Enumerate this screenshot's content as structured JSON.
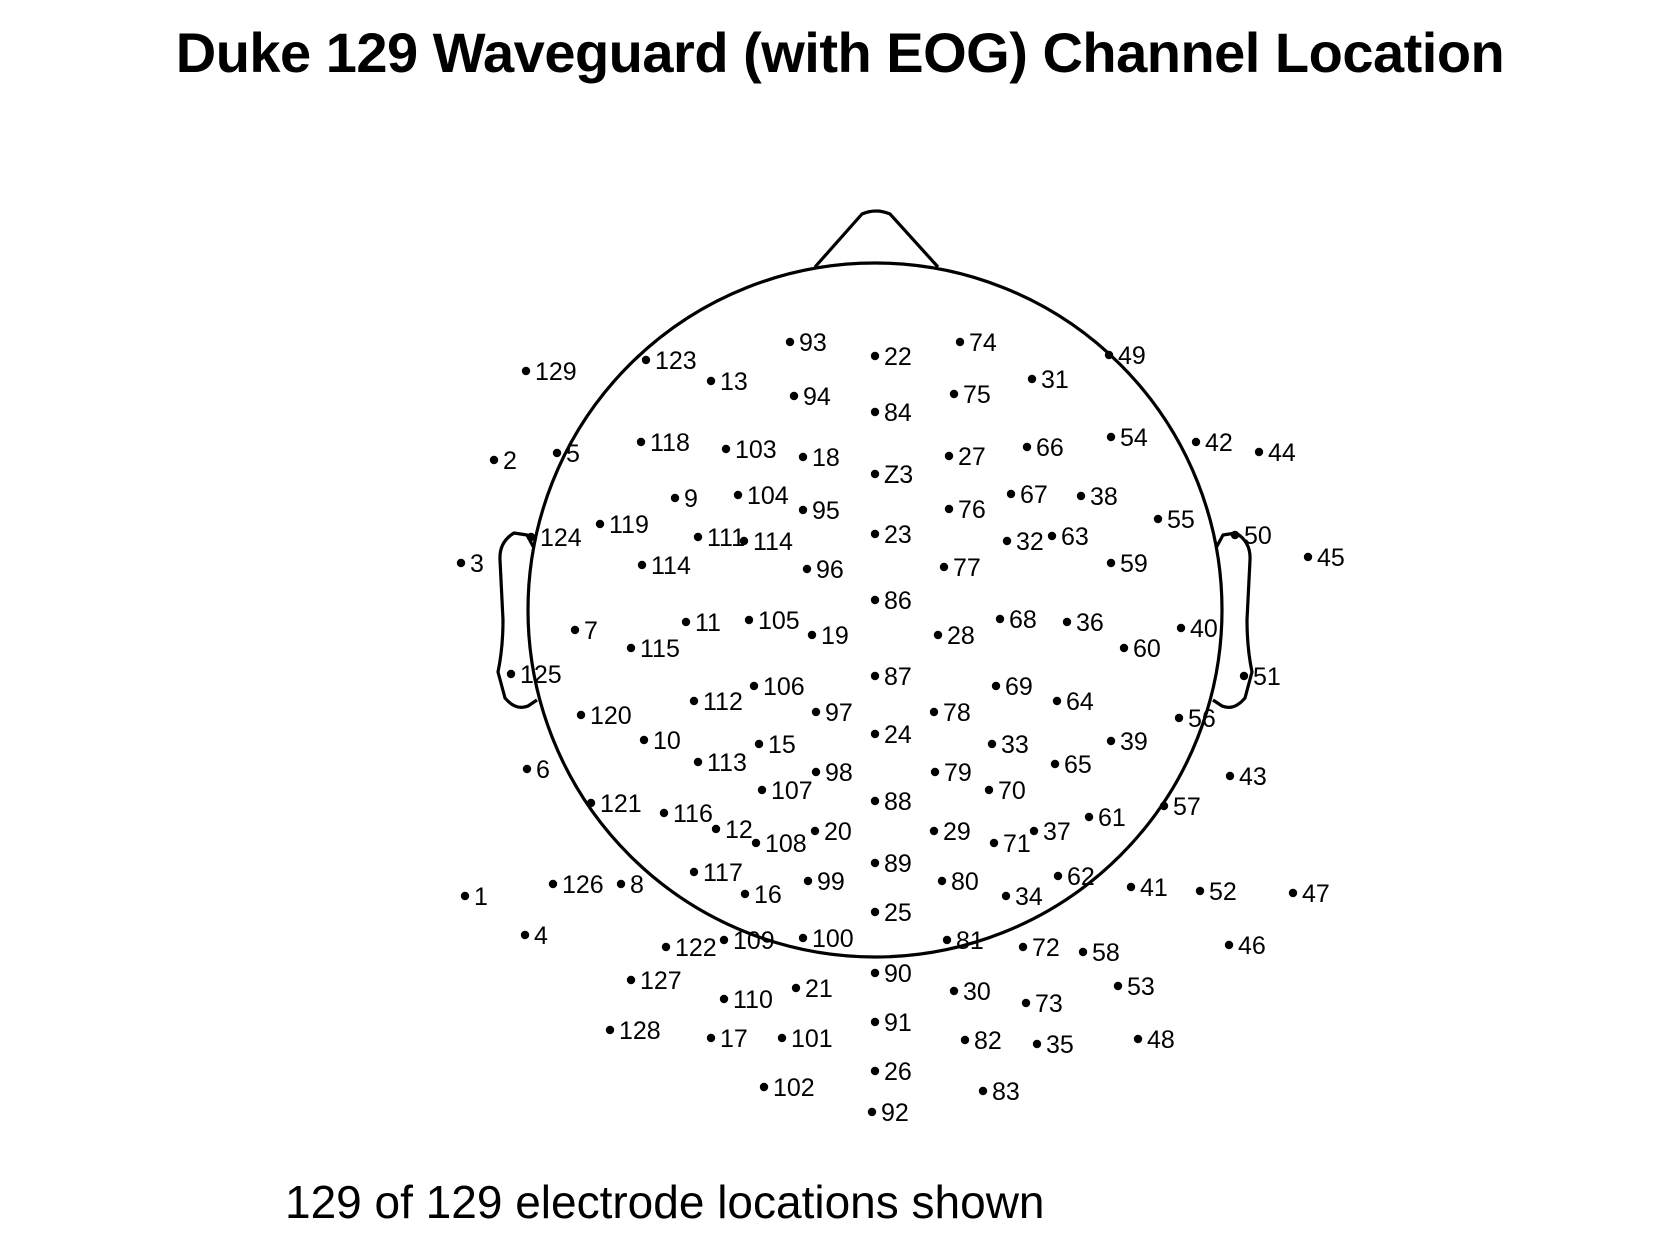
{
  "title": "Duke 129 Waveguard (with EOG) Channel Location",
  "caption": "129 of 129 electrode locations shown",
  "colors": {
    "ink": "#000000",
    "background": "#ffffff"
  },
  "electrodes": [
    {
      "label": "93",
      "x": -85,
      "y": 268
    },
    {
      "label": "22",
      "x": 0,
      "y": 254
    },
    {
      "label": "74",
      "x": 85,
      "y": 268
    },
    {
      "label": "123",
      "x": -229,
      "y": 250
    },
    {
      "label": "13",
      "x": -164,
      "y": 229
    },
    {
      "label": "94",
      "x": -81,
      "y": 214
    },
    {
      "label": "84",
      "x": 0,
      "y": 198
    },
    {
      "label": "75",
      "x": 79,
      "y": 216
    },
    {
      "label": "31",
      "x": 157,
      "y": 231
    },
    {
      "label": "49",
      "x": 234,
      "y": 255
    },
    {
      "label": "129",
      "x": -349,
      "y": 239
    },
    {
      "label": "2",
      "x": -381,
      "y": 150
    },
    {
      "label": "5",
      "x": -318,
      "y": 157
    },
    {
      "label": "118",
      "x": -234,
      "y": 168
    },
    {
      "label": "103",
      "x": -149,
      "y": 161
    },
    {
      "label": "18",
      "x": -72,
      "y": 153
    },
    {
      "label": "Z3",
      "x": 0,
      "y": 136
    },
    {
      "label": "27",
      "x": 74,
      "y": 154
    },
    {
      "label": "66",
      "x": 152,
      "y": 163
    },
    {
      "label": "54",
      "x": 236,
      "y": 173
    },
    {
      "label": "42",
      "x": 321,
      "y": 168
    },
    {
      "label": "44",
      "x": 384,
      "y": 158
    },
    {
      "label": "9",
      "x": -200,
      "y": 112
    },
    {
      "label": "104",
      "x": -137,
      "y": 115
    },
    {
      "label": "95",
      "x": -72,
      "y": 100
    },
    {
      "label": "23",
      "x": 0,
      "y": 76
    },
    {
      "label": "76",
      "x": 74,
      "y": 101
    },
    {
      "label": "67",
      "x": 136,
      "y": 116
    },
    {
      "label": "38",
      "x": 206,
      "y": 114
    },
    {
      "label": "55",
      "x": 283,
      "y": 91
    },
    {
      "label": "119",
      "x": -275,
      "y": 86
    },
    {
      "label": "124",
      "x": -344,
      "y": 73
    },
    {
      "label": "111",
      "x": -177,
      "y": 73
    },
    {
      "label": "114",
      "x": -131,
      "y": 69
    },
    {
      "label": "114",
      "x": -233,
      "y": 45
    },
    {
      "label": "96",
      "x": -68,
      "y": 41
    },
    {
      "label": "77",
      "x": 69,
      "y": 43
    },
    {
      "label": "32",
      "x": 132,
      "y": 69
    },
    {
      "label": "63",
      "x": 177,
      "y": 74
    },
    {
      "label": "59",
      "x": 236,
      "y": 47
    },
    {
      "label": "50",
      "x": 360,
      "y": 75
    },
    {
      "label": "3",
      "x": -414,
      "y": 47
    },
    {
      "label": "45",
      "x": 433,
      "y": 53
    },
    {
      "label": "86",
      "x": 0,
      "y": 10
    },
    {
      "label": "7",
      "x": -300,
      "y": -20
    },
    {
      "label": "11",
      "x": -189,
      "y": -12
    },
    {
      "label": "105",
      "x": -126,
      "y": -10
    },
    {
      "label": "19",
      "x": -63,
      "y": -25
    },
    {
      "label": "28",
      "x": 63,
      "y": -25
    },
    {
      "label": "68",
      "x": 125,
      "y": -9
    },
    {
      "label": "36",
      "x": 192,
      "y": -12
    },
    {
      "label": "60",
      "x": 249,
      "y": -38
    },
    {
      "label": "40",
      "x": 306,
      "y": -18
    },
    {
      "label": "115",
      "x": -244,
      "y": -38
    },
    {
      "label": "125",
      "x": -364,
      "y": -64
    },
    {
      "label": "106",
      "x": -121,
      "y": -76
    },
    {
      "label": "87",
      "x": 0,
      "y": -66
    },
    {
      "label": "69",
      "x": 121,
      "y": -76
    },
    {
      "label": "51",
      "x": 369,
      "y": -66
    },
    {
      "label": "112",
      "x": -181,
      "y": -91
    },
    {
      "label": "97",
      "x": -59,
      "y": -102
    },
    {
      "label": "78",
      "x": 59,
      "y": -102
    },
    {
      "label": "64",
      "x": 182,
      "y": -91
    },
    {
      "label": "120",
      "x": -294,
      "y": -105
    },
    {
      "label": "56",
      "x": 304,
      "y": -108
    },
    {
      "label": "10",
      "x": -231,
      "y": -130
    },
    {
      "label": "15",
      "x": -116,
      "y": -134
    },
    {
      "label": "24",
      "x": 0,
      "y": -124
    },
    {
      "label": "33",
      "x": 117,
      "y": -134
    },
    {
      "label": "39",
      "x": 236,
      "y": -131
    },
    {
      "label": "113",
      "x": -177,
      "y": -152
    },
    {
      "label": "98",
      "x": -59,
      "y": -162
    },
    {
      "label": "79",
      "x": 60,
      "y": -162
    },
    {
      "label": "65",
      "x": 180,
      "y": -154
    },
    {
      "label": "6",
      "x": -348,
      "y": -159
    },
    {
      "label": "43",
      "x": 355,
      "y": -166
    },
    {
      "label": "107",
      "x": -113,
      "y": -180
    },
    {
      "label": "70",
      "x": 114,
      "y": -180
    },
    {
      "label": "121",
      "x": -284,
      "y": -193
    },
    {
      "label": "116",
      "x": -211,
      "y": -203
    },
    {
      "label": "88",
      "x": 0,
      "y": -191
    },
    {
      "label": "57",
      "x": 289,
      "y": -196
    },
    {
      "label": "12",
      "x": -159,
      "y": -219
    },
    {
      "label": "108",
      "x": -119,
      "y": -233
    },
    {
      "label": "20",
      "x": -60,
      "y": -221
    },
    {
      "label": "29",
      "x": 59,
      "y": -221
    },
    {
      "label": "71",
      "x": 119,
      "y": -233
    },
    {
      "label": "37",
      "x": 159,
      "y": -221
    },
    {
      "label": "61",
      "x": 214,
      "y": -207
    },
    {
      "label": "117",
      "x": -181,
      "y": -262
    },
    {
      "label": "99",
      "x": -67,
      "y": -271
    },
    {
      "label": "89",
      "x": 0,
      "y": -253
    },
    {
      "label": "80",
      "x": 67,
      "y": -271
    },
    {
      "label": "62",
      "x": 183,
      "y": -266
    },
    {
      "label": "126",
      "x": -322,
      "y": -274
    },
    {
      "label": "8",
      "x": -254,
      "y": -274
    },
    {
      "label": "16",
      "x": -130,
      "y": -284
    },
    {
      "label": "34",
      "x": 131,
      "y": -286
    },
    {
      "label": "41",
      "x": 256,
      "y": -277
    },
    {
      "label": "52",
      "x": 325,
      "y": -281
    },
    {
      "label": "47",
      "x": 418,
      "y": -283
    },
    {
      "label": "1",
      "x": -410,
      "y": -286
    },
    {
      "label": "25",
      "x": 0,
      "y": -302
    },
    {
      "label": "4",
      "x": -350,
      "y": -325
    },
    {
      "label": "109",
      "x": -151,
      "y": -330
    },
    {
      "label": "100",
      "x": -72,
      "y": -328
    },
    {
      "label": "81",
      "x": 72,
      "y": -330
    },
    {
      "label": "72",
      "x": 148,
      "y": -337
    },
    {
      "label": "58",
      "x": 208,
      "y": -342
    },
    {
      "label": "46",
      "x": 354,
      "y": -335
    },
    {
      "label": "122",
      "x": -209,
      "y": -337
    },
    {
      "label": "127",
      "x": -244,
      "y": -370
    },
    {
      "label": "90",
      "x": 0,
      "y": -363
    },
    {
      "label": "21",
      "x": -79,
      "y": -378
    },
    {
      "label": "30",
      "x": 79,
      "y": -381
    },
    {
      "label": "53",
      "x": 243,
      "y": -376
    },
    {
      "label": "110",
      "x": -151,
      "y": -389
    },
    {
      "label": "73",
      "x": 151,
      "y": -393
    },
    {
      "label": "91",
      "x": 0,
      "y": -412
    },
    {
      "label": "128",
      "x": -265,
      "y": -420
    },
    {
      "label": "17",
      "x": -164,
      "y": -428
    },
    {
      "label": "101",
      "x": -93,
      "y": -428
    },
    {
      "label": "82",
      "x": 90,
      "y": -430
    },
    {
      "label": "35",
      "x": 162,
      "y": -434
    },
    {
      "label": "48",
      "x": 263,
      "y": -429
    },
    {
      "label": "26",
      "x": 0,
      "y": -461
    },
    {
      "label": "102",
      "x": -111,
      "y": -477
    },
    {
      "label": "83",
      "x": 108,
      "y": -481
    },
    {
      "label": "92",
      "x": -3,
      "y": -502
    }
  ]
}
